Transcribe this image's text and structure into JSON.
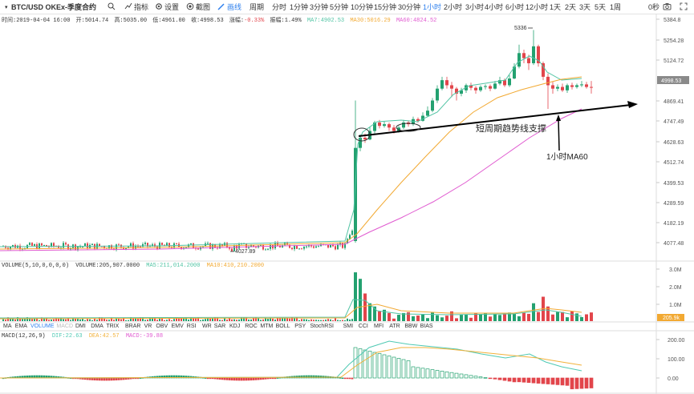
{
  "toolbar": {
    "symbol": "BTC/USD OKEx-季度合约",
    "search_icon": "search-icon",
    "indicators": "指标",
    "settings": "设置",
    "screenshot": "截图",
    "draw": "画线",
    "period": "周期",
    "periods": [
      "分时",
      "1分钟",
      "3分钟",
      "5分钟",
      "10分钟",
      "15分钟",
      "30分钟",
      "1小时",
      "2小时",
      "3小时",
      "4小时",
      "6小时",
      "12小时",
      "1天",
      "2天",
      "3天",
      "5天",
      "1周"
    ],
    "active_period": "1小时",
    "countdown": "0秒"
  },
  "info": {
    "time_label": "时间:2019-04-04 16:00",
    "open_label": "开:5014.74",
    "high_label": "高:5035.00",
    "low_label": "低:4961.00",
    "close_label": "收:4998.53",
    "change_label": "涨幅:",
    "change_value": "-0.33%",
    "amp_label": "振幅:1.49%",
    "ma7_label": "MA7:4902.53",
    "ma30_label": "MA30:5016.29",
    "ma60_label": "MA60:4824.52"
  },
  "volume_info": {
    "title": "VOLUME(5,10,0,0,0,0)",
    "value": "VOLUME:205,907.0000",
    "ma5": "MA5:211,014.2000",
    "ma10": "MA10:410,210.2000"
  },
  "macd_info": {
    "title": "MACD(12,26,9)",
    "dif": "DIF:22.63",
    "dea": "DEA:42.57",
    "macd": "MACD:-39.88"
  },
  "tabs": [
    "MA",
    "EMA",
    "VOLUME",
    "MACD",
    "DMI",
    "DMA",
    "TRIX",
    "BRAR",
    "VR",
    "OBV",
    "EMV",
    "RSI",
    "WR",
    "SAR",
    "KDJ",
    "ROC",
    "MTM",
    "BOLL",
    "PSY",
    "StochRSI",
    "SMI",
    "CCI",
    "MFI",
    "ATR",
    "BBW",
    "BIAS"
  ],
  "price_axis": [
    "5384.8",
    "5254.28",
    "5124.72",
    "4869.41",
    "4747.49",
    "4628.63",
    "4512.74",
    "4399.53",
    "4289.59",
    "4182.19",
    "4077.48"
  ],
  "current_price": "4998.53",
  "annotations": {
    "trend_text": "短周期趋势线支撑",
    "ma60_text": "1小时MA60",
    "high_label": "5336",
    "low_label": "4027.89"
  },
  "volume_axis": [
    "3.0M",
    "2.0M",
    "1.0M"
  ],
  "volume_current": "205.9k",
  "macd_axis": [
    "200.00",
    "100.00",
    "0.00"
  ],
  "colors": {
    "up": "#23a170",
    "down": "#e2454b",
    "ma7": "#52c4a4",
    "ma30": "#f2a932",
    "ma60": "#e05ad0",
    "dif": "#4ec9b3",
    "dea": "#f2b13a",
    "macd_up": "#23a170",
    "macd_down": "#e2454b"
  },
  "chart_data": {
    "type": "candlestick",
    "series": [
      {
        "name": "MA7",
        "values": [
          4902.53
        ]
      },
      {
        "name": "MA30",
        "values": [
          5016.29
        ]
      },
      {
        "name": "MA60",
        "values": [
          4824.52
        ]
      }
    ],
    "ylim": [
      4000,
      5400
    ]
  }
}
